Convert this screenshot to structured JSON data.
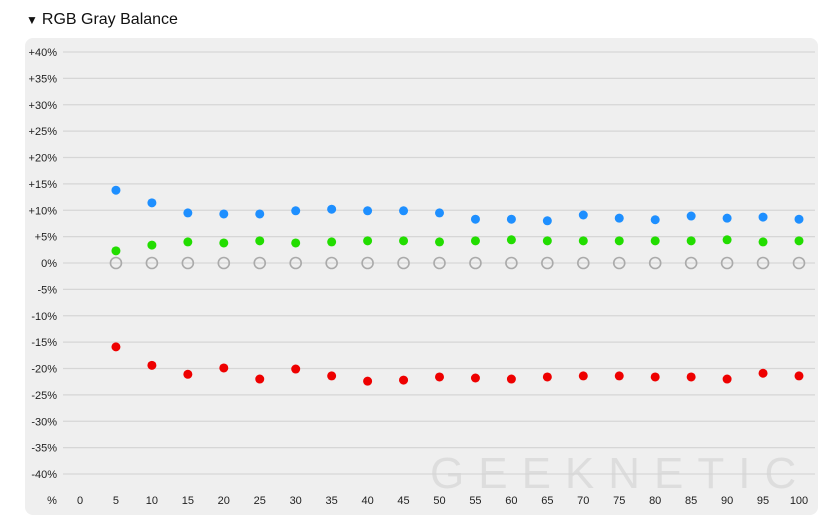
{
  "header": {
    "collapse_icon": "triangle-down-icon",
    "title": "RGB Gray Balance"
  },
  "watermark": "GEEKNETIC",
  "chart_data": {
    "type": "scatter",
    "title": "RGB Gray Balance",
    "x_unit_label": "%",
    "x": [
      0,
      5,
      10,
      15,
      20,
      25,
      30,
      35,
      40,
      45,
      50,
      55,
      60,
      65,
      70,
      75,
      80,
      85,
      90,
      95,
      100
    ],
    "xlim": [
      0,
      100
    ],
    "ylim": [
      -40,
      40
    ],
    "y_ticks": [
      "+40%",
      "+35%",
      "+30%",
      "+25%",
      "+20%",
      "+15%",
      "+10%",
      "+5%",
      "0%",
      "-5%",
      "-10%",
      "-15%",
      "-20%",
      "-25%",
      "-30%",
      "-35%",
      "-40%"
    ],
    "y_tick_values": [
      40,
      35,
      30,
      25,
      20,
      15,
      10,
      5,
      0,
      -5,
      -10,
      -15,
      -20,
      -25,
      -30,
      -35,
      -40
    ],
    "grid": true,
    "series": [
      {
        "color": "#1e8fff",
        "marker": "filled",
        "x": [
          5,
          10,
          15,
          20,
          25,
          30,
          35,
          40,
          45,
          50,
          55,
          60,
          65,
          70,
          75,
          80,
          85,
          90,
          95,
          100
        ],
        "values": [
          13.8,
          11.4,
          9.5,
          9.3,
          9.3,
          9.9,
          10.2,
          9.9,
          9.9,
          9.5,
          8.3,
          8.3,
          8.0,
          9.1,
          8.5,
          8.2,
          8.9,
          8.5,
          8.7,
          8.3
        ]
      },
      {
        "color": "#22dd00",
        "marker": "filled",
        "x": [
          5,
          10,
          15,
          20,
          25,
          30,
          35,
          40,
          45,
          50,
          55,
          60,
          65,
          70,
          75,
          80,
          85,
          90,
          95,
          100
        ],
        "values": [
          2.3,
          3.4,
          4.0,
          3.8,
          4.2,
          3.8,
          4.0,
          4.2,
          4.2,
          4.0,
          4.2,
          4.4,
          4.2,
          4.2,
          4.2,
          4.2,
          4.2,
          4.4,
          4.0,
          4.2
        ]
      },
      {
        "color": "#aaaaaa",
        "marker": "hollow",
        "x": [
          5,
          10,
          15,
          20,
          25,
          30,
          35,
          40,
          45,
          50,
          55,
          60,
          65,
          70,
          75,
          80,
          85,
          90,
          95,
          100
        ],
        "values": [
          0,
          0,
          0,
          0,
          0,
          0,
          0,
          0,
          0,
          0,
          0,
          0,
          0,
          0,
          0,
          0,
          0,
          0,
          0,
          0
        ]
      },
      {
        "color": "#ee0000",
        "marker": "filled",
        "x": [
          5,
          10,
          15,
          20,
          25,
          30,
          35,
          40,
          45,
          50,
          55,
          60,
          65,
          70,
          75,
          80,
          85,
          90,
          95,
          100
        ],
        "values": [
          -15.9,
          -19.4,
          -21.1,
          -19.9,
          -22.0,
          -20.1,
          -21.4,
          -22.4,
          -22.2,
          -21.6,
          -21.8,
          -22.0,
          -21.6,
          -21.4,
          -21.4,
          -21.6,
          -21.6,
          -22.0,
          -20.9,
          -21.4
        ]
      }
    ]
  }
}
